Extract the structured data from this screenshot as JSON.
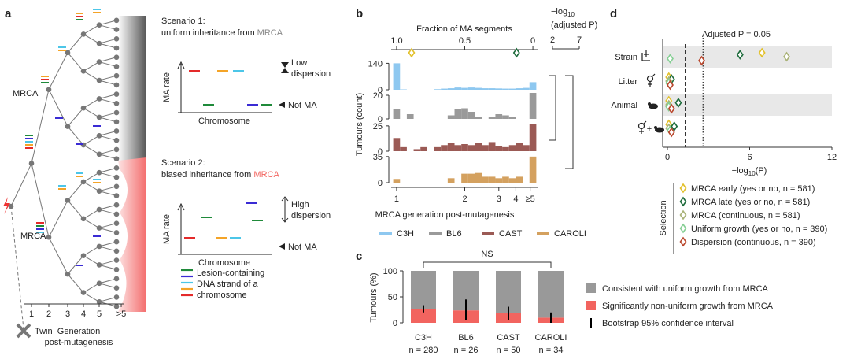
{
  "diagram": {
    "label": "a",
    "tree_labels": {
      "upper_mrca": "MRCA",
      "lower_mrca": "MRCA",
      "twin": "Twin"
    },
    "generation_axis": {
      "ticks": [
        "1",
        "2",
        "3",
        "4",
        "5",
        ">5"
      ],
      "title": [
        "Generation",
        "post-mutagenesis"
      ]
    },
    "scenario1": {
      "heading": "Scenario 1:",
      "text": "uniform inheritance from ",
      "highlight": "MRCA",
      "y_label": "MA rate",
      "x_label": "Chromosome",
      "dispersion": [
        "Low",
        "dispersion"
      ],
      "not_ma": "Not MA"
    },
    "scenario2": {
      "heading": "Scenario 2:",
      "text": "biased inheritance from ",
      "highlight": "MRCA",
      "y_label": "MA rate",
      "x_label": "Chromosome",
      "dispersion": [
        "High",
        "dispersion"
      ],
      "not_ma": "Not MA"
    },
    "legend": [
      "Lesion-containing",
      "DNA strand of a",
      "chromosome"
    ]
  },
  "chart_data": [
    {
      "type": "histogram",
      "label": "b",
      "x_label_top": "Fraction of MA segments",
      "x_label": "MRCA generation post-mutagenesis",
      "y_label": "Tumours (count)",
      "xlim": [
        1.04,
        -0.04
      ],
      "xticks_top": [
        {
          "value": 1,
          "label": "1.0"
        },
        0.5,
        0
      ],
      "xticks": [
        {
          "value": 1,
          "label": "1"
        },
        {
          "value": 0.5,
          "label": "2"
        },
        {
          "value": 0.25,
          "label": "3"
        },
        {
          "value": 0.125,
          "label": "4"
        },
        {
          "value": 0.02,
          "label": "≥5"
        }
      ],
      "bins": [
        1.025,
        0.975,
        0.925,
        0.875,
        0.825,
        0.775,
        0.725,
        0.675,
        0.625,
        0.575,
        0.525,
        0.475,
        0.425,
        0.375,
        0.325,
        0.275,
        0.225,
        0.175,
        0.125,
        0.075,
        0.025,
        -0.025
      ],
      "series": [
        {
          "name": "C3H",
          "color": "#8ec8f0",
          "ylim": [
            0,
            150
          ],
          "yticks": [
            0,
            140
          ],
          "values": [
            140,
            2,
            0,
            0,
            0,
            0,
            3,
            6,
            8,
            12,
            10,
            12,
            10,
            8,
            8,
            7,
            6,
            6,
            8,
            10,
            40
          ]
        },
        {
          "name": "BL6",
          "color": "#9a9a9a",
          "ylim": [
            0,
            24
          ],
          "yticks": [
            0,
            20
          ],
          "values": [
            8,
            0,
            4,
            0,
            0,
            0,
            0,
            0,
            3,
            8,
            9,
            6,
            2,
            0,
            2,
            4,
            3,
            2,
            0,
            0,
            22
          ]
        },
        {
          "name": "CAST",
          "color": "#9b5a55",
          "ylim": [
            0,
            28
          ],
          "yticks": [
            0,
            25
          ],
          "values": [
            13,
            4,
            0,
            2,
            4,
            0,
            4,
            6,
            8,
            6,
            7,
            6,
            8,
            6,
            9,
            5,
            4,
            6,
            8,
            6,
            27
          ]
        },
        {
          "name": "CAROLI",
          "color": "#d4a15f",
          "ylim": [
            0,
            38
          ],
          "yticks": [
            0,
            35
          ],
          "values": [
            5,
            0,
            0,
            0,
            0,
            0,
            0,
            0,
            6,
            0,
            12,
            12,
            13,
            8,
            8,
            6,
            8,
            6,
            8,
            0,
            35
          ]
        }
      ],
      "markers": [
        {
          "x": 0.89,
          "color": "#e2c02a"
        },
        {
          "x": 0.12,
          "color": "#1d6b3b"
        }
      ],
      "significance_scale": {
        "prefix": "−log",
        "sub": "10",
        "suffix": "(adjusted P)",
        "ticks": [
          2,
          7
        ]
      }
    },
    {
      "type": "stacked_bar",
      "label": "c",
      "y_label": "Tumours (%)",
      "categories": [
        "C3H",
        "BL6",
        "CAST",
        "CAROLI"
      ],
      "category_notes": [
        "n = 280",
        "n = 26",
        "n = 50",
        "n = 34"
      ],
      "ylim": [
        0,
        100
      ],
      "yticks": [
        0,
        50,
        100
      ],
      "series": [
        {
          "name": "Significantly non-uniform growth from MRCA",
          "color": "#f2645f",
          "values": [
            27,
            24,
            19,
            10
          ]
        },
        {
          "name": "Consistent with uniform growth from MRCA",
          "color": "#999999",
          "values": [
            73,
            76,
            81,
            90
          ]
        }
      ],
      "error_bars": {
        "name": "Bootstrap 95% confidence interval",
        "low": [
          20,
          5,
          5,
          0
        ],
        "high": [
          34,
          45,
          31,
          20
        ]
      },
      "annotation": "NS"
    },
    {
      "type": "dot",
      "label": "d",
      "categories": [
        "Strain",
        "Litter",
        "Animal",
        "+"
      ],
      "x_label": {
        "prefix": "−log",
        "sub": "10",
        "suffix": "(P)"
      },
      "xlim": [
        0,
        12
      ],
      "xticks": [
        0,
        6,
        12
      ],
      "thresholds": [
        1.3,
        2.6
      ],
      "annotation": "Adjusted P = 0.05",
      "legend_title": "Selection",
      "series": [
        {
          "name": "MRCA early (yes or no, n = 581)",
          "color": "#e2c02a",
          "values": [
            6.9,
            0.1,
            0.1,
            0.1
          ]
        },
        {
          "name": "MRCA late (yes or no, n = 581)",
          "color": "#1d6b3b",
          "values": [
            5.3,
            0.3,
            0.8,
            0.5
          ]
        },
        {
          "name": "MRCA (continuous, n = 581)",
          "color": "#a9b277",
          "values": [
            8.7,
            0.1,
            0.1,
            0.1
          ]
        },
        {
          "name": "Uniform growth (yes or no, n = 390)",
          "color": "#86cf94",
          "values": [
            0.2,
            0.1,
            0.1,
            0.2
          ]
        },
        {
          "name": "Dispersion (continuous, n = 390)",
          "color": "#b9472d",
          "values": [
            2.5,
            0.2,
            0.3,
            0.3
          ]
        }
      ]
    }
  ]
}
